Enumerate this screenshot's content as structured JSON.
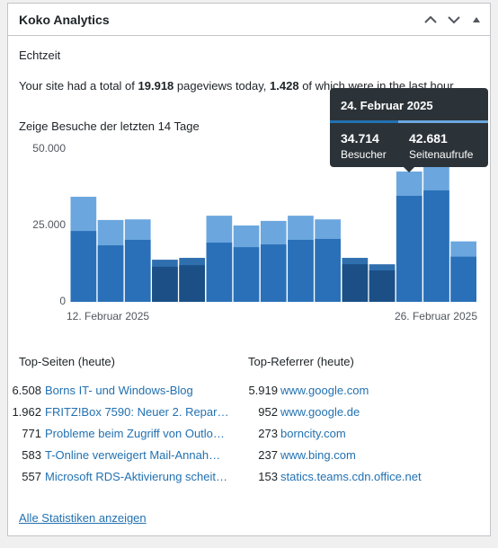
{
  "widget": {
    "title": "Koko Analytics",
    "section": "Echtzeit",
    "realtime": {
      "before": "Your site had a total of",
      "pageviews": "19.918",
      "middle": "pageviews today,",
      "last_hour": "1.428",
      "after": "of which were in the last hour."
    },
    "chart_heading": "Zeige Besuche der letzten 14 Tage",
    "tooltip": {
      "date": "24. Februar 2025",
      "items": [
        {
          "value": "34.714",
          "label": "Besucher"
        },
        {
          "value": "42.681",
          "label": "Seitenaufrufe"
        }
      ]
    },
    "top_pages": {
      "title": "Top-Seiten (heute)",
      "rows": [
        [
          "6.508",
          "Borns IT- und Windows-Blog"
        ],
        [
          "1.962",
          "FRITZ!Box 7590: Neuer 2. Repar…"
        ],
        [
          "771",
          "Probleme beim Zugriff von Outlo…"
        ],
        [
          "583",
          "T-Online verweigert Mail-Annah…"
        ],
        [
          "557",
          "Microsoft RDS-Aktivierung scheit…"
        ]
      ]
    },
    "top_referrers": {
      "title": "Top-Referrer (heute)",
      "rows": [
        [
          "5.919",
          "www.google.com"
        ],
        [
          "952",
          "www.google.de"
        ],
        [
          "273",
          "borncity.com"
        ],
        [
          "237",
          "www.bing.com"
        ],
        [
          "153",
          "statics.teams.cdn.office.net"
        ]
      ]
    },
    "footer_link": "Alle Statistiken anzeigen"
  },
  "chart_data": {
    "type": "bar",
    "categories": [
      "12. Februar 2025",
      null,
      null,
      null,
      null,
      null,
      null,
      null,
      null,
      null,
      null,
      null,
      null,
      null,
      "26. Februar 2025"
    ],
    "series": [
      {
        "name": "Seitenaufrufe",
        "colors": [
          "#6ba7de",
          "#6ba7de",
          "#6ba7de",
          "#2f6fae",
          "#2f6fae",
          "#6ba7de",
          "#6ba7de",
          "#6ba7de",
          "#6ba7de",
          "#6ba7de",
          "#2f6fae",
          "#2f6fae",
          "#6ba7de",
          "#6ba7de",
          "#6ba7de"
        ],
        "values": [
          34400,
          26800,
          27000,
          13800,
          14400,
          28200,
          25000,
          26500,
          28200,
          27000,
          14400,
          12300,
          42681,
          47300,
          19800
        ]
      },
      {
        "name": "Besucher",
        "colors": [
          "#2a70b8",
          "#2a70b8",
          "#2a70b8",
          "#1b4f86",
          "#1b4f86",
          "#2a70b8",
          "#2a70b8",
          "#2a70b8",
          "#2a70b8",
          "#2a70b8",
          "#1b4f86",
          "#1b4f86",
          "#2a70b8",
          "#2a70b8",
          "#2a70b8"
        ],
        "values": [
          23200,
          18500,
          20300,
          11500,
          12000,
          19400,
          17900,
          18800,
          20300,
          20600,
          12300,
          10300,
          34714,
          36500,
          14800
        ]
      }
    ],
    "ylim": [
      0,
      50000
    ],
    "yticks": [
      0,
      {
        "value": 25000,
        "label": "25.000"
      },
      {
        "value": 50000,
        "label": "50.000"
      }
    ]
  }
}
